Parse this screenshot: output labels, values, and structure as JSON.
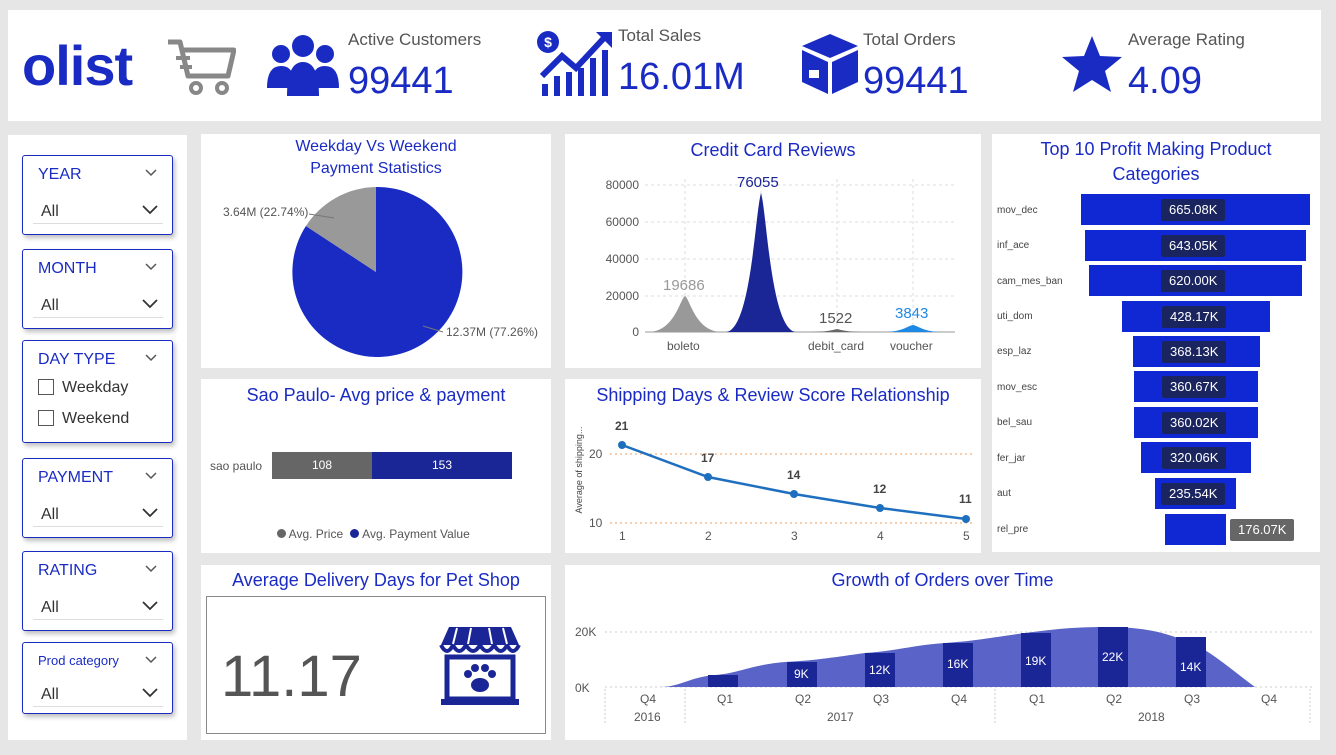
{
  "header": {
    "logo_text": "olist",
    "kpis": [
      {
        "label": "Active Customers",
        "value": "99441"
      },
      {
        "label": "Total Sales",
        "value": "16.01M"
      },
      {
        "label": "Total Orders",
        "value": "99441"
      },
      {
        "label": "Average Rating",
        "value": "4.09"
      }
    ]
  },
  "filters": {
    "year": {
      "title": "YEAR",
      "value": "All"
    },
    "month": {
      "title": "MONTH",
      "value": "All"
    },
    "day_type": {
      "title": "DAY TYPE",
      "options": [
        "Weekday",
        "Weekend"
      ]
    },
    "payment": {
      "title": "PAYMENT",
      "value": "All"
    },
    "rating": {
      "title": "RATING",
      "value": "All"
    },
    "prod_category": {
      "title": "Prod category",
      "value": "All"
    }
  },
  "pie": {
    "title_line1": "Weekday Vs Weekend",
    "title_line2": "Payment Statistics",
    "label_small": "3.64M (22.74%)",
    "label_large": "12.37M (77.26%)"
  },
  "credit": {
    "title": "Credit Card Reviews",
    "y_ticks": [
      "80000",
      "60000",
      "40000",
      "20000",
      "0"
    ],
    "peaks": [
      {
        "label": "boleto",
        "value_text": "19686"
      },
      {
        "label": "",
        "value_text": "76055"
      },
      {
        "label": "debit_card",
        "value_text": "1522"
      },
      {
        "label": "voucher",
        "value_text": "3843"
      }
    ]
  },
  "funnel": {
    "title_line1": "Top 10 Profit Making Product",
    "title_line2": "Categories",
    "rows": [
      {
        "cat": "mov_dec",
        "value": "665.08K"
      },
      {
        "cat": "inf_ace",
        "value": "643.05K"
      },
      {
        "cat": "cam_mes_ban",
        "value": "620.00K"
      },
      {
        "cat": "uti_dom",
        "value": "428.17K"
      },
      {
        "cat": "esp_laz",
        "value": "368.13K"
      },
      {
        "cat": "mov_esc",
        "value": "360.67K"
      },
      {
        "cat": "bel_sau",
        "value": "360.02K"
      },
      {
        "cat": "fer_jar",
        "value": "320.06K"
      },
      {
        "cat": "aut",
        "value": "235.54K"
      },
      {
        "cat": "rel_pre",
        "value": "176.07K"
      }
    ]
  },
  "saopaulo": {
    "title": "Sao Paulo- Avg price & payment",
    "category": "sao paulo",
    "price": "108",
    "payment": "153",
    "legend_price": "Avg. Price",
    "legend_payment": "Avg. Payment Value"
  },
  "shipping": {
    "title": "Shipping Days & Review Score Relationship",
    "y_label": "Average of shipping...",
    "y_ticks": [
      "20",
      "10"
    ],
    "points": [
      {
        "x": "1",
        "label": "21"
      },
      {
        "x": "2",
        "label": "17"
      },
      {
        "x": "3",
        "label": "14"
      },
      {
        "x": "4",
        "label": "12"
      },
      {
        "x": "5",
        "label": "11"
      }
    ]
  },
  "delivery": {
    "title": "Average Delivery Days for Pet Shop",
    "value": "11.17"
  },
  "growth": {
    "title": "Growth of Orders over Time",
    "y_ticks": [
      "20K",
      "0K"
    ],
    "quarters": [
      "Q4",
      "Q1",
      "Q2",
      "Q3",
      "Q4",
      "Q1",
      "Q2",
      "Q3",
      "Q4"
    ],
    "years": [
      "2016",
      "2017",
      "2018"
    ],
    "labels": [
      "9K",
      "12K",
      "16K",
      "19K",
      "22K",
      "14K"
    ]
  },
  "colors": {
    "accent": "#1a2bc4",
    "dark": "#1a2560",
    "grey": "#999999"
  }
}
